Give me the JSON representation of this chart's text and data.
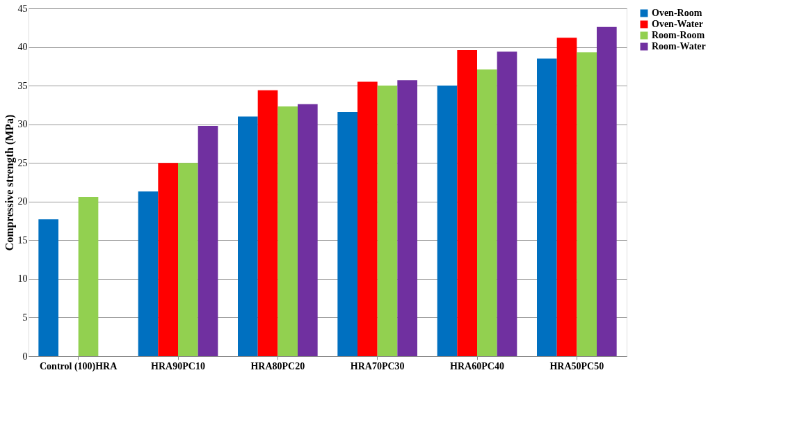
{
  "chart_data": {
    "type": "bar",
    "ylabel": "Compressive strength (MPa)",
    "categories": [
      "Control (100)HRA",
      "HRA90PC10",
      "HRA80PC20",
      "HRA70PC30",
      "HRA60PC40",
      "HRA50PC50"
    ],
    "series": [
      {
        "name": "Oven-Room",
        "color": "#0070c0",
        "values": [
          17.7,
          21.3,
          31.0,
          31.6,
          35.0,
          38.5
        ]
      },
      {
        "name": "Oven-Water",
        "color": "#ff0000",
        "values": [
          null,
          25.0,
          34.4,
          35.5,
          39.6,
          41.2
        ]
      },
      {
        "name": "Room-Room",
        "color": "#92d050",
        "values": [
          20.6,
          25.0,
          32.3,
          35.0,
          37.1,
          39.3
        ]
      },
      {
        "name": "Room-Water",
        "color": "#7030a0",
        "values": [
          null,
          29.8,
          32.6,
          35.7,
          39.4,
          42.6
        ]
      }
    ],
    "ylim": [
      0,
      45
    ],
    "yticks": [
      0,
      5,
      10,
      15,
      20,
      25,
      30,
      35,
      40,
      45
    ],
    "grid": "y",
    "legend": "right"
  }
}
